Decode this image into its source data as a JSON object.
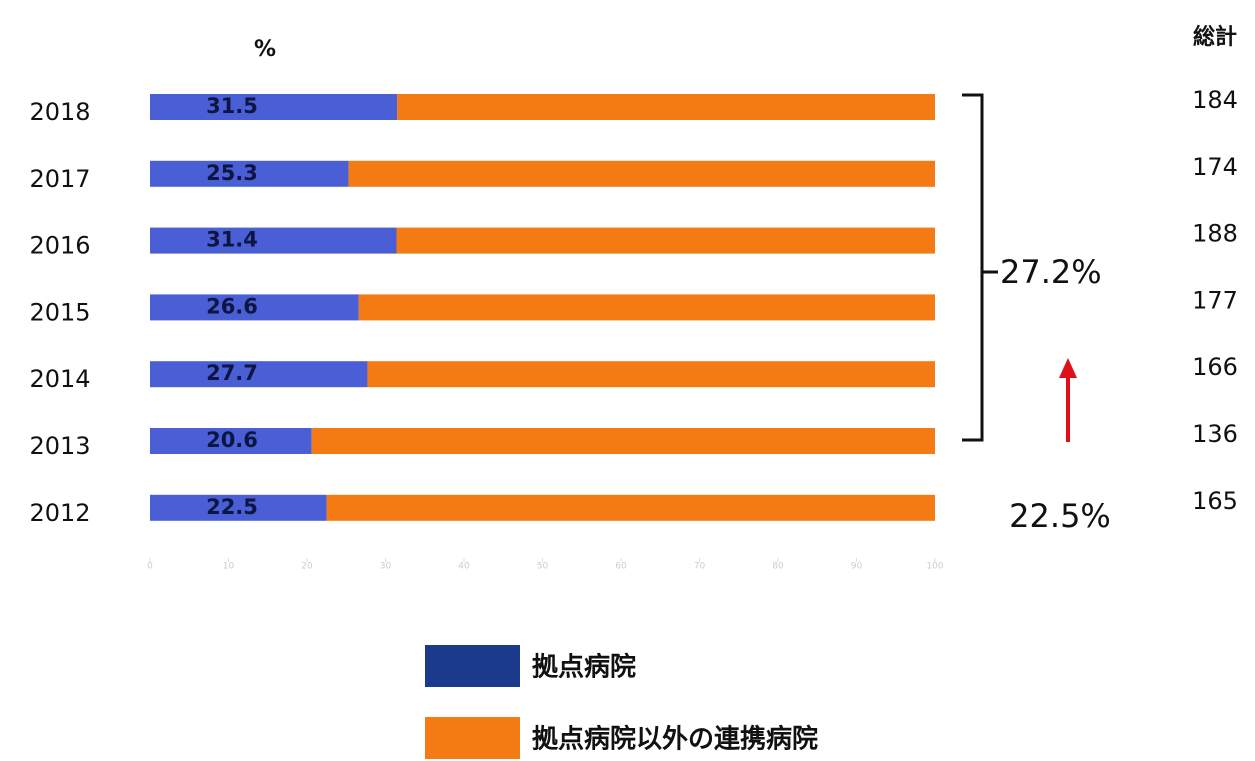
{
  "chart_data": {
    "type": "stacked_hbar",
    "unit_label": "%",
    "categories": [
      "2018",
      "2017",
      "2016",
      "2015",
      "2014",
      "2013",
      "2012"
    ],
    "series": [
      {
        "name": "拠点病院",
        "color": "#4a5ed6",
        "values": [
          31.5,
          25.3,
          31.4,
          26.6,
          27.7,
          20.6,
          22.5
        ]
      },
      {
        "name": "拠点病院以外の連携病院",
        "color": "#f47a14",
        "values": [
          68.5,
          74.7,
          68.6,
          73.4,
          72.3,
          79.4,
          77.5
        ]
      }
    ],
    "xlim": [
      0,
      100
    ],
    "xticks": [
      0,
      10,
      20,
      30,
      40,
      50,
      60,
      70,
      80,
      90,
      100
    ],
    "totals": {
      "label": "総計",
      "values": [
        184,
        174,
        188,
        177,
        166,
        136,
        165
      ]
    },
    "annotations": [
      "27.2%",
      "22.5%"
    ]
  }
}
